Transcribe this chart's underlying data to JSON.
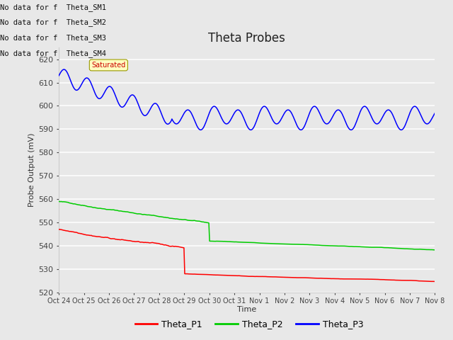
{
  "title": "Theta Probes",
  "xlabel": "Time",
  "ylabel": "Probe Output (mV)",
  "ylim": [
    520,
    625
  ],
  "yticks": [
    520,
    530,
    540,
    550,
    560,
    570,
    580,
    590,
    600,
    610,
    620
  ],
  "x_labels": [
    "Oct 24",
    "Oct 25",
    "Oct 26",
    "Oct 27",
    "Oct 28",
    "Oct 29",
    "Oct 30",
    "Oct 31",
    "Nov 1",
    "Nov 2",
    "Nov 3",
    "Nov 4",
    "Nov 5",
    "Nov 6",
    "Nov 7",
    "Nov 8"
  ],
  "bg_color": "#e8e8e8",
  "colors_P1": "#ff0000",
  "colors_P2": "#00cc00",
  "colors_P3": "#0000ff",
  "legend_labels": [
    "Theta_P1",
    "Theta_P2",
    "Theta_P3"
  ],
  "annotation_lines": [
    "No data for f  Theta_SM1",
    "No data for f  Theta_SM2",
    "No data for f  Theta_SM3",
    "No data for f  Theta_SM4"
  ],
  "annotation_box_text": "Saturated",
  "n_points": 500
}
